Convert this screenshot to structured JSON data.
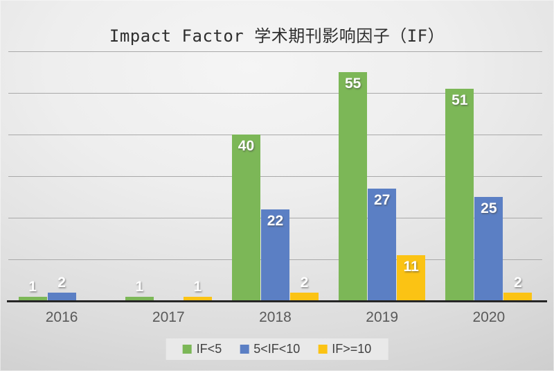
{
  "chart_data": {
    "type": "bar",
    "title": "Impact Factor 学术期刊影响因子（IF）",
    "categories": [
      "2016",
      "2017",
      "2018",
      "2019",
      "2020"
    ],
    "series": [
      {
        "name": "IF<5",
        "color": "#7CB757",
        "values": [
          1,
          1,
          40,
          55,
          51
        ]
      },
      {
        "name": "5<IF<10",
        "color": "#5B7FC4",
        "values": [
          2,
          0,
          22,
          27,
          25
        ]
      },
      {
        "name": "IF>=10",
        "color": "#FBC314",
        "values": [
          0,
          1,
          2,
          11,
          2
        ]
      }
    ],
    "ylim": [
      0,
      60
    ],
    "gridline_interval": 10,
    "grid": true,
    "y_axis_labels_visible": false,
    "data_labels_visible": true,
    "zero_values_hidden": true,
    "legend_position": "bottom"
  },
  "colors": {
    "gridline": "#a9a9a9",
    "axis": "#262626",
    "xlabel_text": "#595959",
    "legend_bg": "#e9e9e9",
    "legend_text": "#404040",
    "title_text": "#2e2e2e",
    "data_label_text": "#ffffff"
  }
}
